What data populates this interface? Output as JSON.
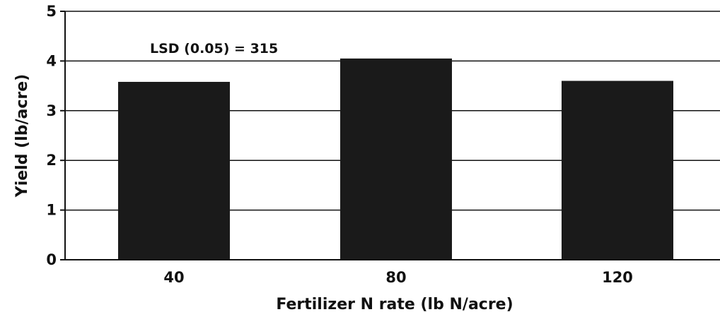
{
  "chart_data": {
    "type": "bar",
    "title": "",
    "xlabel": "Fertilizer N rate (lb N/acre)",
    "ylabel": "Yield (lb/acre)",
    "categories": [
      "40",
      "80",
      "120"
    ],
    "values": [
      3.58,
      4.05,
      3.6
    ],
    "ylim": [
      0,
      5
    ],
    "yticks": [
      "0",
      "1",
      "2",
      "3",
      "4",
      "5"
    ],
    "grid": "horizontal",
    "annotation": "LSD (0.05) = 315",
    "bar_color": "#1a1a1a"
  }
}
